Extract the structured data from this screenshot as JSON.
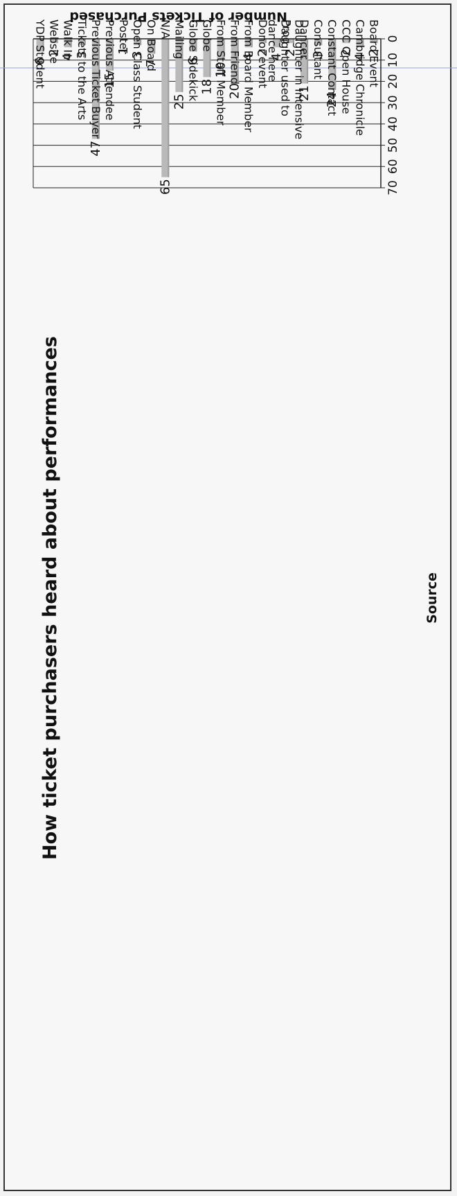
{
  "chart_data": {
    "type": "bar",
    "title": "How ticket purchasers heard about performances",
    "xlabel": "Source",
    "ylabel": "Number of Tickets Purchased",
    "ylim": [
      0,
      70
    ],
    "yticks": [
      0,
      10,
      20,
      30,
      40,
      50,
      60,
      70
    ],
    "grid": true,
    "legend": "none",
    "bar_color": "#b9b9b9",
    "categories": [
      "Board Event",
      "Cambridge Chronicle",
      "CCC Open House",
      "Constant Contact",
      "Consultant",
      "Dancer",
      "Daughter in Intensive Prog",
      "Daughter used to dance here",
      "Donor event",
      "From Board Member",
      "From Friend",
      "From Staff Member",
      "Globe",
      "Globe Sidekick",
      "Mailing",
      "N/A",
      "On Board",
      "Open Class Student",
      "Poster",
      "Previous Attendee",
      "Previous Ticket Buyer",
      "Tickets to the Arts",
      "Walk In",
      "Website",
      "YDP Student"
    ],
    "values": [
      2,
      4,
      2,
      24,
      3,
      21,
      2,
      4,
      2,
      4,
      20,
      10,
      18,
      6,
      25,
      65,
      7,
      3,
      1,
      15,
      47,
      3,
      4,
      2,
      6
    ]
  }
}
